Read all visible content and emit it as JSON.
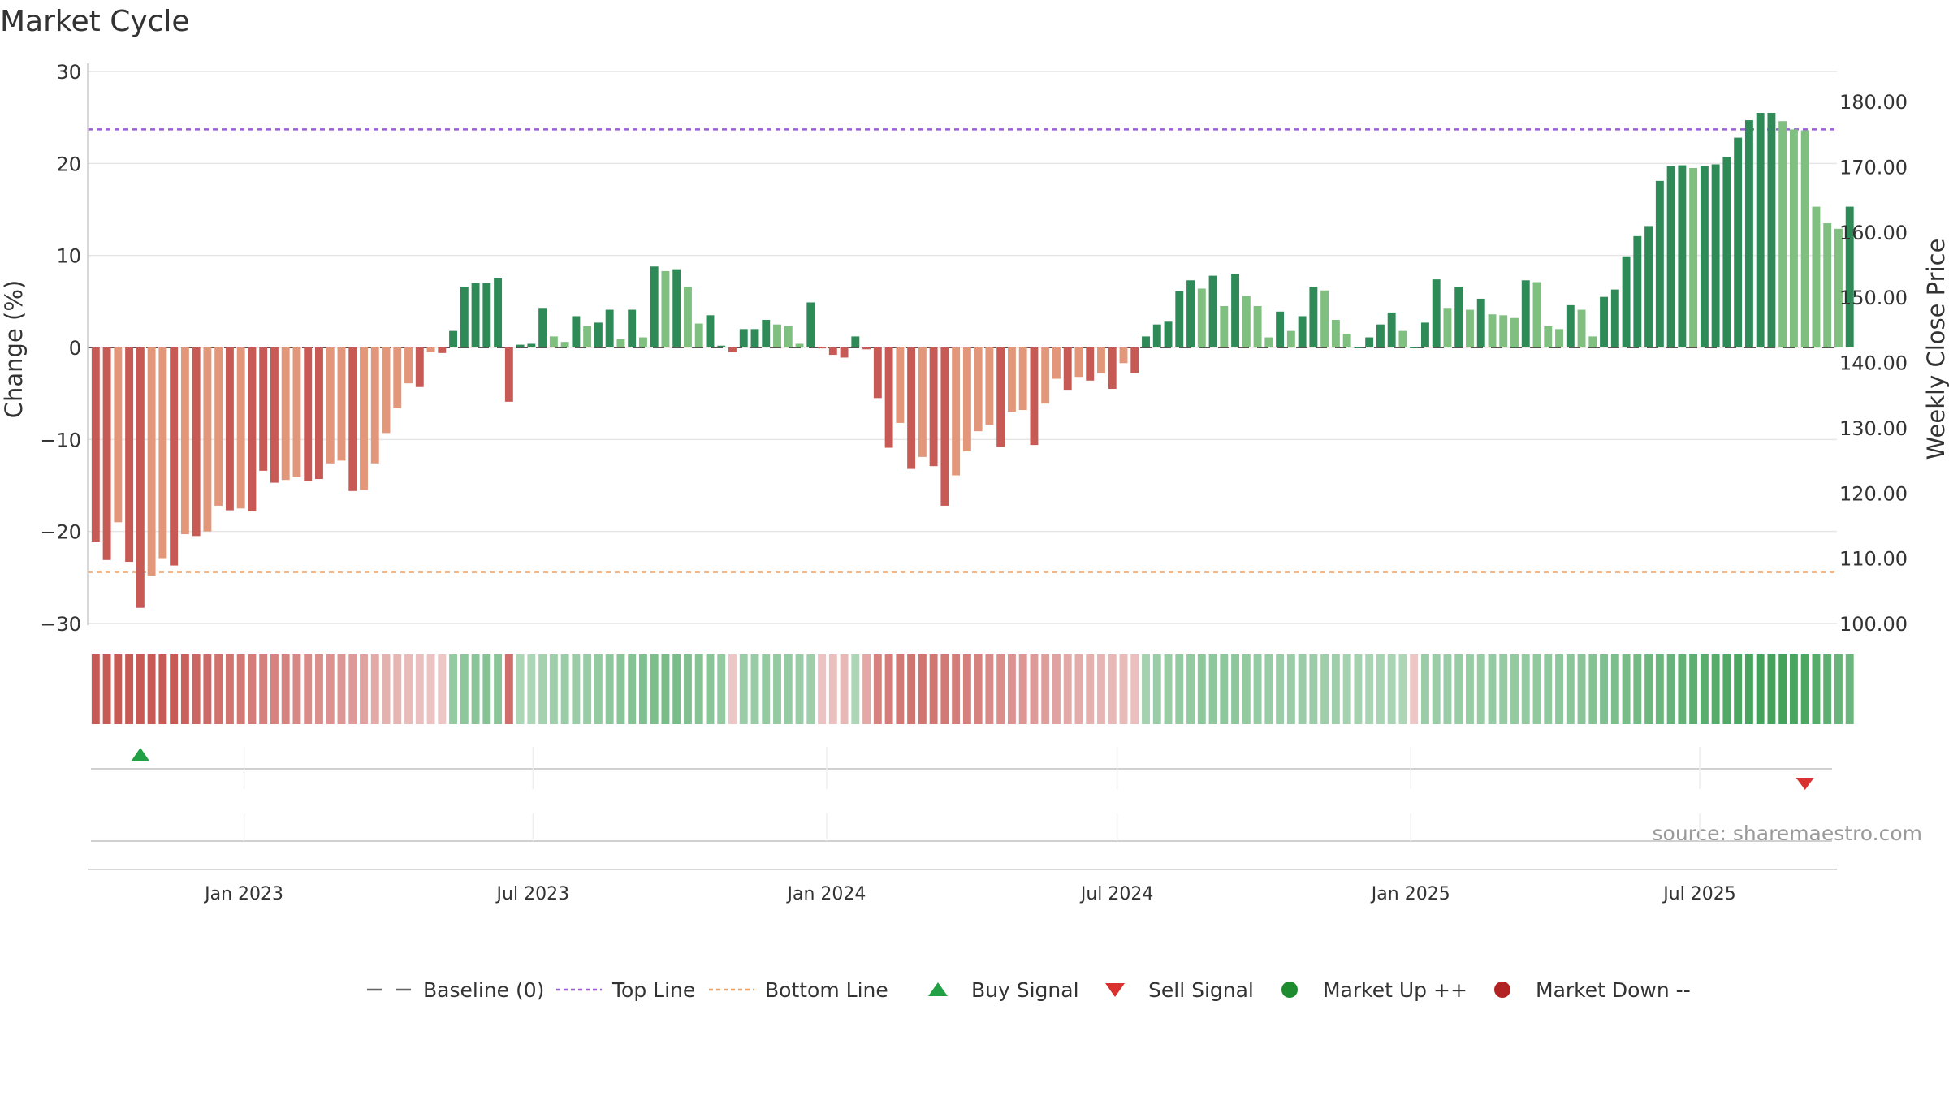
{
  "chart_data": {
    "type": "bar",
    "title": "Market Cycle",
    "ylabel_left": "Change (%)",
    "ylabel_right": "Weekly Close Price",
    "ylim_left": [
      -30,
      30
    ],
    "ylim_right": [
      100,
      180
    ],
    "yticks_left": [
      "30",
      "20",
      "10",
      "0",
      "−10",
      "−20",
      "−30"
    ],
    "yticks_right": [
      "180.00",
      "170.00",
      "160.00",
      "150.00",
      "140.00",
      "130.00",
      "120.00",
      "110.00",
      "100.00"
    ],
    "top_line": 23.7,
    "bottom_line": -24.4,
    "x_range": [
      "2022-09-25",
      "2025-09-25"
    ],
    "x_ticks": [
      {
        "date": "2023-01-01",
        "label": "Jan 2023"
      },
      {
        "date": "2023-07-01",
        "label": "Jul 2023"
      },
      {
        "date": "2024-01-01",
        "label": "Jan 2024"
      },
      {
        "date": "2024-07-01",
        "label": "Jul 2024"
      },
      {
        "date": "2025-01-01",
        "label": "Jan 2025"
      },
      {
        "date": "2025-07-01",
        "label": "Jul 2025"
      }
    ],
    "weeks_start": "2022-09-30",
    "values": [
      -21.1,
      -23.1,
      -19.0,
      -23.3,
      -28.3,
      -24.8,
      -22.9,
      -23.7,
      -20.3,
      -20.5,
      -20.0,
      -17.2,
      -17.7,
      -17.5,
      -17.8,
      -13.4,
      -14.7,
      -14.4,
      -14.1,
      -14.5,
      -14.3,
      -12.6,
      -12.3,
      -15.6,
      -15.5,
      -12.6,
      -9.3,
      -6.6,
      -3.9,
      -4.3,
      -0.5,
      -0.6,
      1.8,
      6.6,
      7.0,
      7.0,
      7.5,
      -5.9,
      0.3,
      0.4,
      4.3,
      1.2,
      0.6,
      3.4,
      2.3,
      2.7,
      4.1,
      0.9,
      4.1,
      1.1,
      8.8,
      8.3,
      8.5,
      6.6,
      2.6,
      3.5,
      0.2,
      -0.5,
      2.0,
      2.0,
      3.0,
      2.5,
      2.3,
      0.4,
      4.9,
      -0.1,
      -0.8,
      -1.1,
      1.2,
      -0.2,
      -5.5,
      -10.9,
      -8.2,
      -13.2,
      -11.9,
      -12.9,
      -17.2,
      -13.9,
      -11.3,
      -9.1,
      -8.4,
      -10.8,
      -7.0,
      -6.8,
      -10.6,
      -6.1,
      -3.4,
      -4.6,
      -3.2,
      -3.6,
      -2.8,
      -4.5,
      -1.7,
      -2.8,
      1.2,
      2.5,
      2.8,
      6.1,
      7.3,
      6.4,
      7.8,
      4.5,
      8.0,
      5.6,
      4.5,
      1.1,
      3.9,
      1.8,
      3.4,
      6.6,
      6.2,
      3.0,
      1.5,
      0.0,
      1.1,
      2.5,
      3.8,
      1.8,
      0.0,
      2.7,
      7.4,
      4.3,
      6.6,
      4.1,
      5.3,
      3.6,
      3.5,
      3.2,
      7.3,
      7.1,
      2.3,
      2.0,
      4.6,
      4.1,
      1.2,
      5.5,
      6.3,
      9.9,
      12.1,
      13.2,
      18.1,
      19.7,
      19.8,
      19.5,
      19.7,
      19.9,
      20.7,
      22.8,
      24.7,
      25.5,
      25.5,
      24.6,
      23.7,
      23.6,
      15.3,
      13.5,
      12.9,
      15.3
    ],
    "bar_colors": [
      "#c85a56",
      "#c85a56",
      "#e3977a",
      "#c85a56",
      "#c85a56",
      "#e3977a",
      "#e3977a",
      "#c85a56",
      "#e3977a",
      "#c85a56",
      "#e3977a",
      "#e3977a",
      "#c85a56",
      "#e3977a",
      "#c85a56",
      "#c85a56",
      "#c85a56",
      "#e3977a",
      "#e3977a",
      "#c85a56",
      "#c85a56",
      "#e3977a",
      "#e3977a",
      "#c85a56",
      "#e3977a",
      "#e3977a",
      "#e3977a",
      "#e3977a",
      "#e3977a",
      "#c85a56",
      "#e3977a",
      "#c85a56",
      "#2e8a57",
      "#2e8a57",
      "#2e8a57",
      "#2e8a57",
      "#2e8a57",
      "#c85a56",
      "#2e8a57",
      "#2e8a57",
      "#2e8a57",
      "#7fbf7f",
      "#7fbf7f",
      "#2e8a57",
      "#7fbf7f",
      "#2e8a57",
      "#2e8a57",
      "#7fbf7f",
      "#2e8a57",
      "#7fbf7f",
      "#2e8a57",
      "#7fbf7f",
      "#2e8a57",
      "#7fbf7f",
      "#7fbf7f",
      "#2e8a57",
      "#2e8a57",
      "#c85a56",
      "#2e8a57",
      "#2e8a57",
      "#2e8a57",
      "#7fbf7f",
      "#7fbf7f",
      "#7fbf7f",
      "#2e8a57",
      "#c85a56",
      "#c85a56",
      "#c85a56",
      "#2e8a57",
      "#c85a56",
      "#c85a56",
      "#c85a56",
      "#e3977a",
      "#c85a56",
      "#e3977a",
      "#c85a56",
      "#c85a56",
      "#e3977a",
      "#e3977a",
      "#e3977a",
      "#e3977a",
      "#c85a56",
      "#e3977a",
      "#e3977a",
      "#c85a56",
      "#e3977a",
      "#e3977a",
      "#c85a56",
      "#e3977a",
      "#c85a56",
      "#e3977a",
      "#c85a56",
      "#e3977a",
      "#c85a56",
      "#2e8a57",
      "#2e8a57",
      "#2e8a57",
      "#2e8a57",
      "#2e8a57",
      "#7fbf7f",
      "#2e8a57",
      "#7fbf7f",
      "#2e8a57",
      "#7fbf7f",
      "#7fbf7f",
      "#7fbf7f",
      "#2e8a57",
      "#7fbf7f",
      "#2e8a57",
      "#2e8a57",
      "#7fbf7f",
      "#7fbf7f",
      "#7fbf7f",
      "#2e8a57",
      "#2e8a57",
      "#2e8a57",
      "#2e8a57",
      "#7fbf7f",
      "#2e8a57",
      "#2e8a57",
      "#2e8a57",
      "#7fbf7f",
      "#2e8a57",
      "#7fbf7f",
      "#2e8a57",
      "#7fbf7f",
      "#7fbf7f",
      "#7fbf7f",
      "#2e8a57",
      "#7fbf7f",
      "#7fbf7f",
      "#7fbf7f",
      "#2e8a57",
      "#7fbf7f",
      "#7fbf7f",
      "#2e8a57",
      "#2e8a57",
      "#2e8a57",
      "#2e8a57",
      "#2e8a57",
      "#2e8a57",
      "#2e8a57",
      "#2e8a57",
      "#7fbf7f",
      "#2e8a57",
      "#2e8a57",
      "#2e8a57",
      "#2e8a57",
      "#2e8a57",
      "#2e8a57",
      "#2e8a57",
      "#7fbf7f",
      "#7fbf7f",
      "#7fbf7f",
      "#7fbf7f",
      "#7fbf7f",
      "#7fbf7f",
      "#2e8a57"
    ],
    "strip_values": [
      -0.85,
      -0.88,
      -0.9,
      -0.9,
      -0.92,
      -0.92,
      -0.88,
      -0.85,
      -0.8,
      -0.75,
      -0.72,
      -0.68,
      -0.65,
      -0.62,
      -0.6,
      -0.58,
      -0.56,
      -0.55,
      -0.52,
      -0.5,
      -0.48,
      -0.45,
      -0.42,
      -0.4,
      -0.35,
      -0.3,
      -0.25,
      -0.22,
      -0.18,
      -0.15,
      -0.12,
      -0.1,
      0.35,
      0.38,
      0.4,
      0.42,
      0.4,
      -0.7,
      0.2,
      0.2,
      0.25,
      0.28,
      0.3,
      0.3,
      0.32,
      0.35,
      0.38,
      0.4,
      0.42,
      0.45,
      0.48,
      0.5,
      0.5,
      0.45,
      0.42,
      0.4,
      0.35,
      -0.1,
      0.3,
      0.32,
      0.35,
      0.35,
      0.33,
      0.3,
      0.28,
      -0.12,
      -0.15,
      -0.2,
      0.2,
      -0.3,
      -0.55,
      -0.6,
      -0.62,
      -0.65,
      -0.65,
      -0.65,
      -0.62,
      -0.6,
      -0.58,
      -0.55,
      -0.5,
      -0.48,
      -0.45,
      -0.42,
      -0.4,
      -0.38,
      -0.35,
      -0.3,
      -0.28,
      -0.25,
      -0.22,
      -0.2,
      -0.18,
      -0.15,
      0.25,
      0.3,
      0.32,
      0.35,
      0.35,
      0.38,
      0.38,
      0.38,
      0.38,
      0.35,
      0.33,
      0.32,
      0.3,
      0.3,
      0.3,
      0.3,
      0.28,
      0.28,
      0.25,
      0.25,
      0.22,
      0.22,
      0.22,
      0.2,
      -0.1,
      0.3,
      0.3,
      0.3,
      0.32,
      0.32,
      0.32,
      0.33,
      0.33,
      0.34,
      0.35,
      0.36,
      0.37,
      0.38,
      0.39,
      0.4,
      0.42,
      0.45,
      0.48,
      0.5,
      0.52,
      0.55,
      0.58,
      0.6,
      0.62,
      0.65,
      0.68,
      0.7,
      0.72,
      0.75,
      0.78,
      0.8,
      0.8,
      0.8,
      0.78,
      0.75,
      0.7,
      0.65,
      0.6,
      0.58
    ],
    "buy_signals": [
      {
        "index": 4
      }
    ],
    "sell_signals": [
      {
        "index": 153
      }
    ],
    "source": "source: sharemaestro.com",
    "legend": [
      {
        "label": "Baseline (0)",
        "kind": "dash",
        "color": "#666666"
      },
      {
        "label": "Top Line",
        "kind": "dotted",
        "color": "#9a5fd6"
      },
      {
        "label": "Bottom Line",
        "kind": "dotted",
        "color": "#f0a060"
      },
      {
        "label": "Buy Signal",
        "kind": "triangle-up",
        "color": "#22a045"
      },
      {
        "label": "Sell Signal",
        "kind": "triangle-down",
        "color": "#d93030"
      },
      {
        "label": "Market Up ++",
        "kind": "dot",
        "color": "#1e8c2e"
      },
      {
        "label": "Market Down --",
        "kind": "dot",
        "color": "#b22222"
      }
    ]
  }
}
